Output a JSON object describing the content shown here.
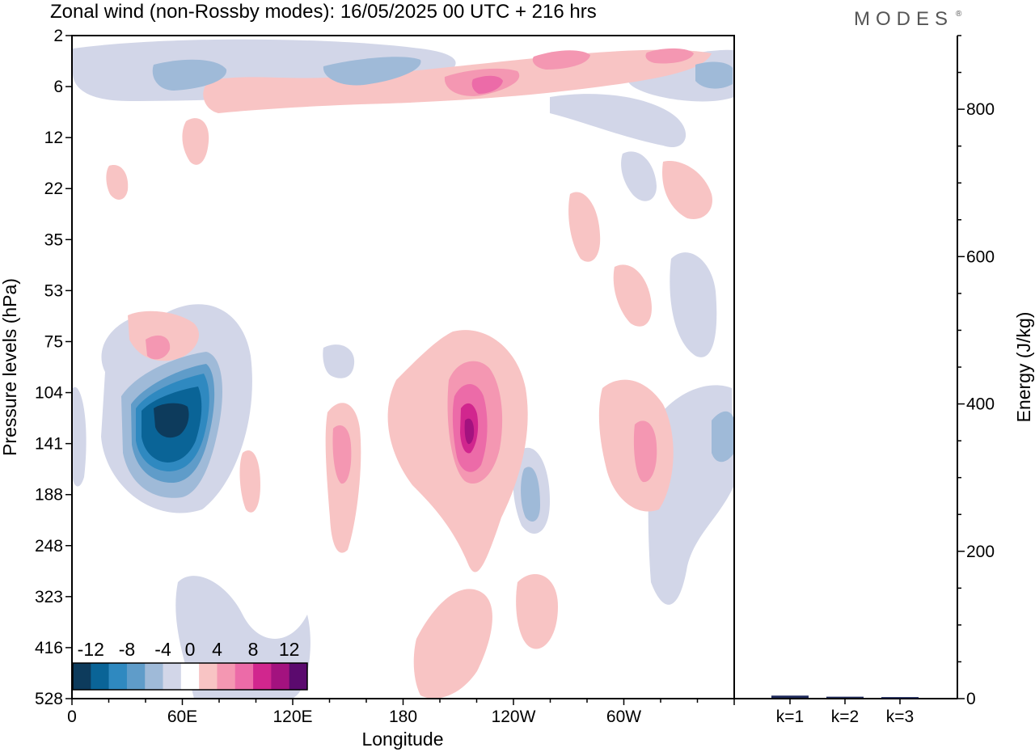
{
  "title": "Zonal wind (non-Rossby modes):  16/05/2025  00 UTC  + 216 hrs",
  "logo": "MODES",
  "logo_mark": "®",
  "chart_data": [
    {
      "type": "heatmap",
      "xlabel": "Longitude",
      "ylabel": "Pressure levels (hPa)",
      "x_tick_labels": [
        "0",
        "60E",
        "120E",
        "180",
        "120W",
        "60W"
      ],
      "x_tick_values_deg": [
        0,
        60,
        120,
        180,
        240,
        300
      ],
      "x_range_deg": [
        0,
        360
      ],
      "y_tick_labels": [
        "2",
        "6",
        "12",
        "22",
        "35",
        "53",
        "75",
        "104",
        "141",
        "188",
        "248",
        "323",
        "416",
        "528"
      ],
      "y_direction": "pressure increasing downward",
      "colorbar": {
        "tick_labels": [
          "-12",
          "-8",
          "-4",
          "0",
          "4",
          "8",
          "12"
        ],
        "levels": [
          -14,
          -12,
          -10,
          -8,
          -6,
          -4,
          -2,
          2,
          4,
          6,
          8,
          10,
          12,
          14
        ],
        "colors": [
          "#0d3b5c",
          "#0a6497",
          "#2f89c0",
          "#5f9cc9",
          "#9fbad8",
          "#d2d6e8",
          "#ffffff",
          "#f8c4c4",
          "#f497b2",
          "#ec6ba8",
          "#d1268e",
          "#a3127f",
          "#5b0a6e"
        ]
      },
      "features": [
        {
          "sign": "negative",
          "longitude_deg": 38,
          "pressure_hPa": 141,
          "peak": -14
        },
        {
          "sign": "negative",
          "longitude_deg": 252,
          "pressure_hPa": 188,
          "peak": -6
        },
        {
          "sign": "negative",
          "longitude_deg": 355,
          "pressure_hPa": 141,
          "peak": -6
        },
        {
          "sign": "negative",
          "longitude_deg": 35,
          "pressure_hPa": 6,
          "peak": -6
        },
        {
          "sign": "negative",
          "longitude_deg": 150,
          "pressure_hPa": 6,
          "peak": -6
        },
        {
          "sign": "negative",
          "longitude_deg": 345,
          "pressure_hPa": 6,
          "peak": -6
        },
        {
          "sign": "positive",
          "longitude_deg": 210,
          "pressure_hPa": 141,
          "peak": 12
        },
        {
          "sign": "positive",
          "longitude_deg": 145,
          "pressure_hPa": 141,
          "peak": 6
        },
        {
          "sign": "positive",
          "longitude_deg": 315,
          "pressure_hPa": 141,
          "peak": 6
        },
        {
          "sign": "positive",
          "longitude_deg": 44,
          "pressure_hPa": 75,
          "peak": 4
        },
        {
          "sign": "positive",
          "longitude_deg": 224,
          "pressure_hPa": 6,
          "peak": 8
        },
        {
          "sign": "positive",
          "longitude_deg": 270,
          "pressure_hPa": 2,
          "peak": 6
        },
        {
          "sign": "positive",
          "longitude_deg": 195,
          "pressure_hPa": 416,
          "peak": 2
        }
      ]
    },
    {
      "type": "bar",
      "ylabel": "Energy (J/kg)",
      "categories": [
        "k=1",
        "k=2",
        "k=3"
      ],
      "values": [
        3,
        1.5,
        1
      ],
      "ylim": [
        0,
        900
      ],
      "y_tick_labels": [
        "0",
        "200",
        "400",
        "600",
        "800"
      ]
    }
  ],
  "colors": {
    "bar": "#1f2a5c",
    "axis": "#000000",
    "logo": "#555555"
  }
}
